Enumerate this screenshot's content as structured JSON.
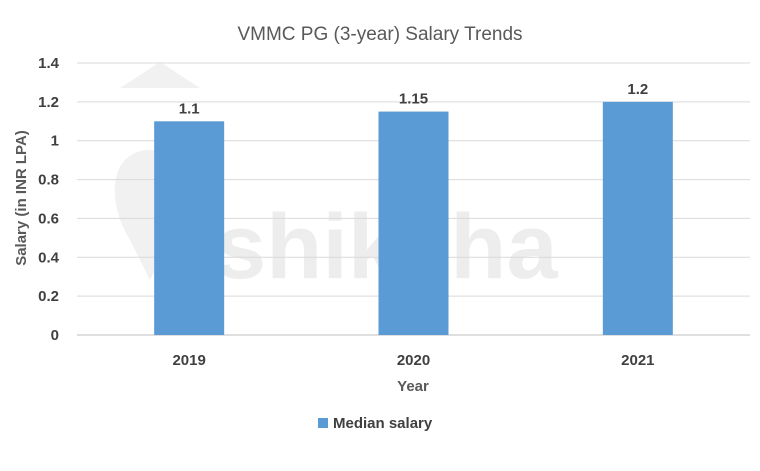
{
  "chart_data": {
    "type": "bar",
    "title": "VMMC PG (3-year) Salary Trends",
    "xlabel": "Year",
    "ylabel": "Salary (in INR LPA)",
    "categories": [
      "2019",
      "2020",
      "2021"
    ],
    "series": [
      {
        "name": "Median salary",
        "values": [
          1.1,
          1.15,
          1.2
        ],
        "labels": [
          "1.1",
          "1.15",
          "1.2"
        ],
        "color": "#5b9bd5"
      }
    ],
    "ylim": [
      0,
      1.4
    ],
    "yticks": [
      0,
      0.2,
      0.4,
      0.6,
      0.8,
      1,
      1.2,
      1.4
    ],
    "ytick_labels": [
      "0",
      "0.2",
      "0.4",
      "0.6",
      "0.8",
      "1",
      "1.2",
      "1.4"
    ],
    "grid": true,
    "legend_position": "bottom",
    "watermark": "shiksha"
  }
}
